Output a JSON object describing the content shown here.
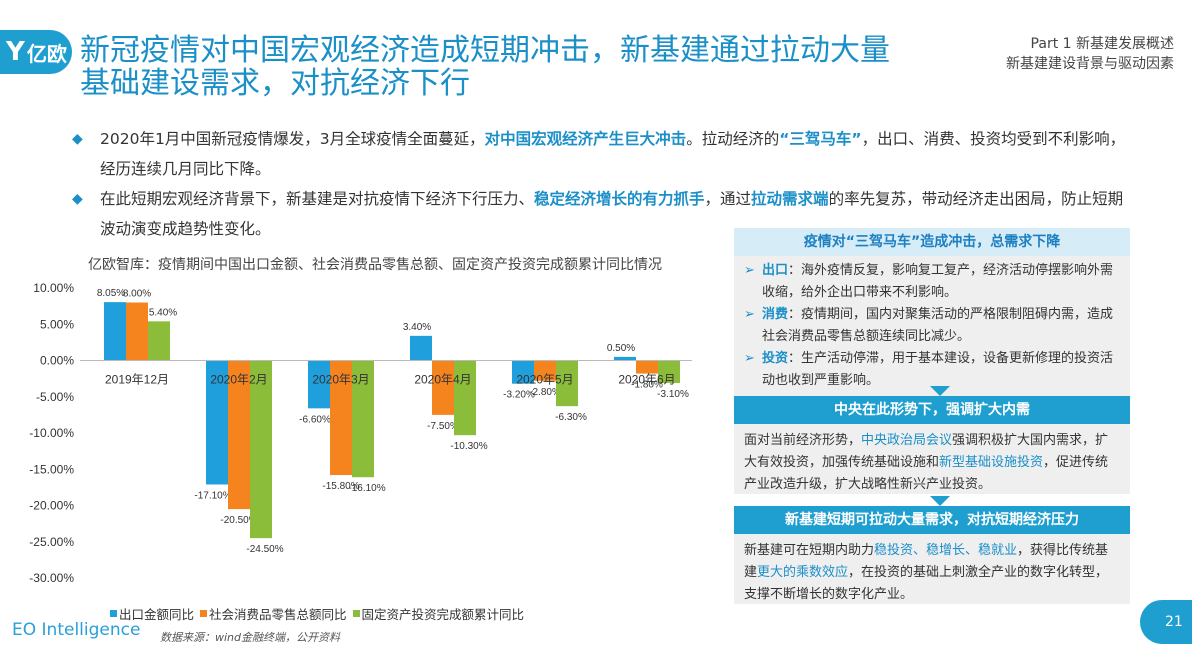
{
  "header": {
    "logo_mark": "Y",
    "logo_text": "亿欧",
    "title": "新冠疫情对中国宏观经济造成短期冲击，新基建通过拉动大量基础建设需求，对抗经济下行",
    "part": "Part 1 新基建发展概述",
    "section": "新基建建设背景与驱动因素"
  },
  "bullets": [
    {
      "p1": "2020年1月中国新冠疫情爆发，3月全球疫情全面蔓延，",
      "h1": "对中国宏观经济产生巨大冲击",
      "p2": "。拉动经济的",
      "h2": "“三驾马车”",
      "p3": "，出口、消费、投资均受到不利影响，经历连续几月同比下降。"
    },
    {
      "p1": "在此短期宏观经济背景下，新基建是对抗疫情下经济下行压力、",
      "h1": "稳定经济增长的有力抓手",
      "p2": "，通过",
      "h2": "拉动需求端",
      "p3": "的率先复苏，带动经济走出困局，防止短期波动演变成趋势性变化。"
    }
  ],
  "chart_subtitle": "亿欧智库：疫情期间中国出口金额、社会消费品零售总额、固定资产投资完成额累计同比情况",
  "chart_data": {
    "type": "bar",
    "categories": [
      "2019年12月",
      "2020年2月",
      "2020年3月",
      "2020年4月",
      "2020年5月",
      "2020年6月"
    ],
    "series": [
      {
        "name": "出口金额同比",
        "color": "#1f9fdc",
        "values": [
          8.05,
          -17.1,
          -6.6,
          3.4,
          -3.2,
          0.5
        ],
        "labels": [
          "8.05%",
          "-17.10%",
          "-6.60%",
          "3.40%",
          "-3.20%",
          "0.50%"
        ]
      },
      {
        "name": "社会消费品零售总额同比",
        "color": "#f5841f",
        "values": [
          8.0,
          -20.5,
          -15.8,
          -7.5,
          -2.8,
          -1.8
        ],
        "labels": [
          "8.00%",
          "-20.50%",
          "-15.80%",
          "-7.50%",
          "-2.80%",
          "-1.80%"
        ]
      },
      {
        "name": "固定资产投资完成额累计同比",
        "color": "#8cbd3a",
        "values": [
          5.4,
          -24.5,
          -16.1,
          -10.3,
          -6.3,
          -3.1
        ],
        "labels": [
          "5.40%",
          "-24.50%",
          "-16.10%",
          "-10.30%",
          "-6.30%",
          "-3.10%"
        ]
      }
    ],
    "ylim": [
      -30,
      10
    ],
    "yticks": [
      10,
      5,
      0,
      -5,
      -10,
      -15,
      -20,
      -25,
      -30
    ],
    "ytick_labels": [
      "10.00%",
      "5.00%",
      "0.00%",
      "-5.00%",
      "-10.00%",
      "-15.00%",
      "-20.00%",
      "-25.00%",
      "-30.00%"
    ],
    "grid": false,
    "legend": "bottom"
  },
  "source": "数据来源：wind金融终端，公开资料",
  "brand": "EO Intelligence",
  "page_number": "21",
  "panel1": {
    "title": "疫情对“三驾马车”造成冲击，总需求下降",
    "items": [
      {
        "arrow": "➢",
        "key": "出口",
        "text": "：海外疫情反复，影响复工复产，经济活动停摆影响外需收缩，给外企出口带来不利影响。"
      },
      {
        "arrow": "➢",
        "key": "消费",
        "text": "：疫情期间，国内对聚集活动的严格限制阻碍内需，造成社会消费品零售总额连续同比减少。"
      },
      {
        "arrow": "➢",
        "key": "投资",
        "text": "：生产活动停滞，用于基本建设，设备更新修理的投资活动也收到严重影响。"
      }
    ]
  },
  "panel2": {
    "title": "中央在此形势下，强调扩大内需",
    "t1": "面对当前经济形势，",
    "h1": "中央政治局会议",
    "t2": "强调积极扩大国内需求，扩大有效投资，加强传统基础设施和",
    "h2": "新型基础设施投资",
    "t3": "，促进传统产业改造升级，扩大战略性新兴产业投资。"
  },
  "panel3": {
    "title": "新基建短期可拉动大量需求，对抗短期经济压力",
    "t1": "新基建可在短期内助力",
    "h1": "稳投资、稳增长、稳就业",
    "t2": "，获得比传统基建",
    "h2": "更大的乘数效应",
    "t3": "，在投资的基础上刺激全产业的数字化转型，支撑不断增长的数字化产业。"
  }
}
